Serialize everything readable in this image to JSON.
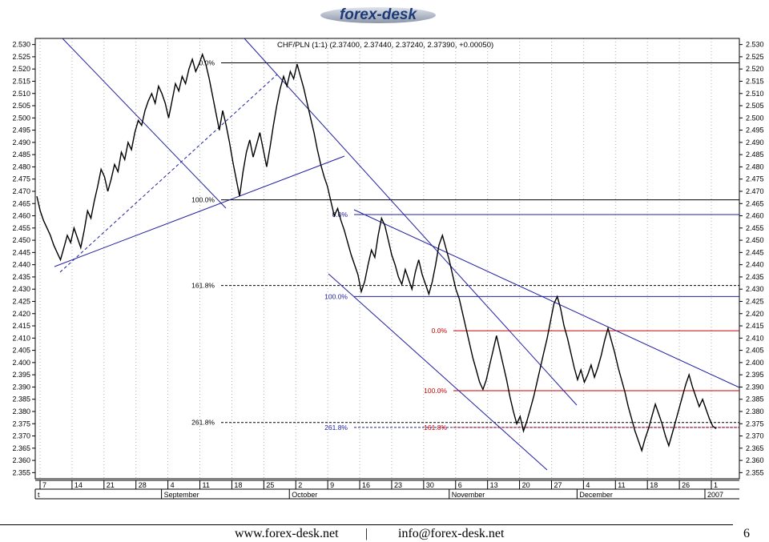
{
  "logo": {
    "text": "forex-desk"
  },
  "footer": {
    "website": "www.forex-desk.net",
    "separator": "|",
    "email": "info@forex-desk.net",
    "page_number": "6"
  },
  "chart_data": {
    "type": "line",
    "title": "CHF/PLN (1:1) (2.37400, 2.37440, 2.37240, 2.37390, +0.00050)",
    "ylim": [
      2.3525,
      2.5325
    ],
    "y_ticks": [
      "2.355",
      "2.360",
      "2.365",
      "2.370",
      "2.375",
      "2.380",
      "2.385",
      "2.390",
      "2.395",
      "2.400",
      "2.405",
      "2.410",
      "2.415",
      "2.420",
      "2.425",
      "2.430",
      "2.435",
      "2.440",
      "2.445",
      "2.450",
      "2.455",
      "2.460",
      "2.465",
      "2.470",
      "2.475",
      "2.480",
      "2.485",
      "2.490",
      "2.495",
      "2.500",
      "2.505",
      "2.510",
      "2.515",
      "2.520",
      "2.525",
      "2.530"
    ],
    "x_day_ticks": [
      "7",
      "14",
      "21",
      "28",
      "4",
      "11",
      "18",
      "25",
      "2",
      "9",
      "16",
      "23",
      "30",
      "6",
      "13",
      "20",
      "27",
      "4",
      "11",
      "18",
      "26",
      "1"
    ],
    "x_month_labels": [
      "t",
      "September",
      "October",
      "November",
      "December",
      "2007"
    ],
    "grid": true,
    "series": [
      {
        "values": [
          2.468,
          2.462,
          2.458,
          2.455,
          2.452,
          2.448,
          2.445,
          2.442,
          2.447,
          2.452,
          2.449,
          2.455,
          2.451,
          2.447,
          2.454,
          2.462,
          2.459,
          2.466,
          2.472,
          2.479,
          2.476,
          2.47,
          2.475,
          2.481,
          2.478,
          2.486,
          2.483,
          2.49,
          2.487,
          2.494,
          2.499,
          2.497,
          2.503,
          2.507,
          2.51,
          2.506,
          2.513,
          2.51,
          2.506,
          2.5,
          2.507,
          2.514,
          2.511,
          2.517,
          2.514,
          2.52,
          2.524,
          2.519,
          2.522,
          2.526,
          2.522,
          2.516,
          2.509,
          2.502,
          2.495,
          2.503,
          2.497,
          2.49,
          2.482,
          2.475,
          2.468,
          2.478,
          2.486,
          2.491,
          2.484,
          2.489,
          2.494,
          2.487,
          2.48,
          2.488,
          2.497,
          2.505,
          2.512,
          2.517,
          2.513,
          2.519,
          2.516,
          2.522,
          2.517,
          2.512,
          2.506,
          2.5,
          2.494,
          2.487,
          2.481,
          2.476,
          2.472,
          2.466,
          2.46,
          2.463,
          2.458,
          2.454,
          2.449,
          2.444,
          2.44,
          2.436,
          2.429,
          2.433,
          2.44,
          2.446,
          2.443,
          2.452,
          2.459,
          2.456,
          2.45,
          2.444,
          2.44,
          2.435,
          2.432,
          2.438,
          2.434,
          2.43,
          2.437,
          2.442,
          2.436,
          2.432,
          2.428,
          2.433,
          2.44,
          2.448,
          2.452,
          2.447,
          2.442,
          2.436,
          2.43,
          2.426,
          2.42,
          2.414,
          2.408,
          2.402,
          2.397,
          2.392,
          2.389,
          2.393,
          2.399,
          2.405,
          2.411,
          2.405,
          2.399,
          2.393,
          2.386,
          2.38,
          2.375,
          2.378,
          2.372,
          2.376,
          2.381,
          2.386,
          2.392,
          2.398,
          2.404,
          2.41,
          2.417,
          2.424,
          2.427,
          2.422,
          2.415,
          2.41,
          2.404,
          2.398,
          2.393,
          2.397,
          2.392,
          2.395,
          2.399,
          2.394,
          2.398,
          2.403,
          2.409,
          2.414,
          2.409,
          2.404,
          2.398,
          2.393,
          2.388,
          2.382,
          2.377,
          2.372,
          2.368,
          2.364,
          2.369,
          2.373,
          2.378,
          2.383,
          2.379,
          2.375,
          2.37,
          2.366,
          2.371,
          2.376,
          2.381,
          2.386,
          2.391,
          2.395,
          2.39,
          2.386,
          2.382,
          2.385,
          2.381,
          2.377,
          2.374,
          2.373
        ]
      }
    ],
    "annotations": [
      {
        "label": "0.0%",
        "y": 2.5225,
        "color": "#000000",
        "dashed": false
      },
      {
        "label": "100.0%",
        "y": 2.4665,
        "color": "#000000",
        "dashed": false
      },
      {
        "label": "161.8%",
        "y": 2.4315,
        "color": "#000000",
        "dashed": true
      },
      {
        "label": "261.8%",
        "y": 2.3755,
        "color": "#000000",
        "dashed": true
      },
      {
        "label": "0.0%",
        "y": 2.4605,
        "color": "#2020a0",
        "dashed": false
      },
      {
        "label": "100.0%",
        "y": 2.427,
        "color": "#2020a0",
        "dashed": false
      },
      {
        "label": "261.8%",
        "y": 2.3735,
        "color": "#2020a0",
        "dashed": true
      },
      {
        "label": "0.0%",
        "y": 2.413,
        "color": "#cc0000",
        "dashed": false
      },
      {
        "label": "100.0%",
        "y": 2.3885,
        "color": "#cc0000",
        "dashed": false
      },
      {
        "label": "161.8%",
        "y": 2.3735,
        "color": "#cc0000",
        "dashed": true
      }
    ],
    "colors": {
      "price": "#000000",
      "trendline": "#2020a0",
      "grid": "#b0b0b0"
    }
  }
}
